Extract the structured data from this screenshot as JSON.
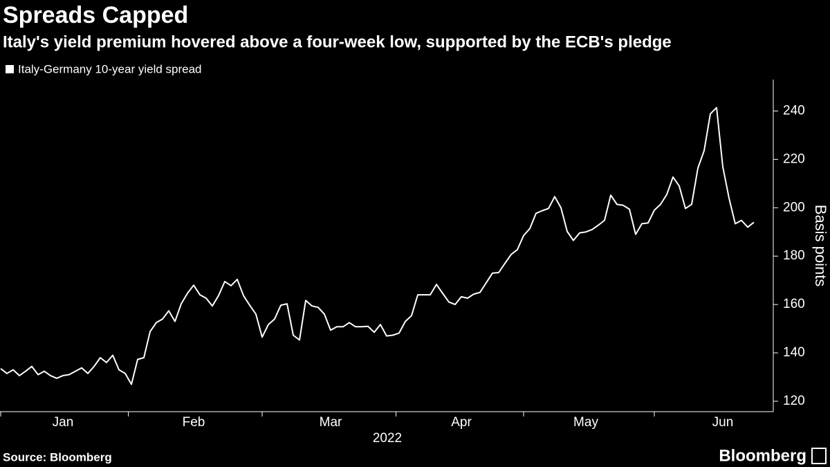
{
  "chart_data": {
    "type": "line",
    "title": "Spreads Capped",
    "subtitle": "Italy's yield premium hovered above a four-week low, supported by the ECB's pledge",
    "ylabel": "Basis points",
    "xlabel": "2022",
    "source": "Source: Bloomberg",
    "brand": "Bloomberg",
    "categories": [
      null,
      null,
      null,
      null,
      null,
      null,
      null,
      null,
      null,
      null,
      "Jan",
      null,
      null,
      null,
      null,
      null,
      null,
      null,
      null,
      null,
      null,
      null,
      null,
      null,
      null,
      null,
      null,
      null,
      null,
      null,
      null,
      "Feb",
      null,
      null,
      null,
      null,
      null,
      null,
      null,
      null,
      null,
      null,
      null,
      null,
      null,
      null,
      null,
      null,
      null,
      null,
      null,
      null,
      null,
      "Mar",
      null,
      null,
      null,
      null,
      null,
      null,
      null,
      null,
      null,
      null,
      null,
      null,
      null,
      null,
      null,
      null,
      null,
      null,
      null,
      null,
      "Apr",
      null,
      null,
      null,
      null,
      null,
      null,
      null,
      null,
      null,
      null,
      null,
      null,
      null,
      null,
      null,
      null,
      null,
      null,
      null,
      "May",
      null,
      null,
      null,
      null,
      null,
      null,
      null,
      null,
      null,
      null,
      null,
      null,
      null,
      null,
      null,
      null,
      null,
      null,
      null,
      null,
      null,
      "Jun",
      null,
      null,
      null,
      null,
      null
    ],
    "series": [
      {
        "name": "Italy-Germany 10-year yield spread",
        "color": "#ffffff",
        "values": [
          133.5,
          131.5,
          133,
          130.6,
          132.4,
          134.4,
          131,
          132.4,
          130.6,
          129.5,
          130.6,
          131,
          132.4,
          133.8,
          131.5,
          134.4,
          138,
          136,
          139,
          133,
          131.5,
          127,
          137.3,
          138,
          148.8,
          152.5,
          154,
          157.4,
          153,
          160.3,
          164.6,
          168,
          164,
          162.6,
          159.4,
          163.7,
          169.5,
          167.8,
          170.4,
          163.7,
          159.7,
          156,
          146.5,
          151.7,
          154,
          159.7,
          160.3,
          147.3,
          145.3,
          161.7,
          159.4,
          158.8,
          156,
          149.4,
          150.8,
          150.8,
          152.5,
          150.8,
          150.8,
          151,
          148.5,
          151.7,
          147,
          147.3,
          148.2,
          153,
          155.4,
          164,
          164,
          164,
          168.3,
          164.6,
          161,
          160,
          163.2,
          162.6,
          164.3,
          165,
          169,
          173,
          173.2,
          177,
          180.7,
          182.7,
          188.5,
          191.4,
          197.7,
          198.8,
          199.7,
          204.6,
          200,
          190.2,
          186.5,
          189.6,
          190,
          191,
          192.8,
          194.8,
          205.2,
          201.4,
          201,
          199.4,
          189,
          193.4,
          193.7,
          199,
          201.4,
          205.5,
          212.7,
          209,
          199.7,
          201.4,
          216.4,
          223.6,
          238.8,
          241.4,
          217,
          204,
          193.4,
          194.8,
          192,
          194
        ]
      }
    ],
    "ylim": [
      115.7,
      253
    ],
    "yticks": [
      120,
      140,
      160,
      180,
      200,
      220,
      240
    ],
    "y_axis_side": "right",
    "grid": false
  }
}
